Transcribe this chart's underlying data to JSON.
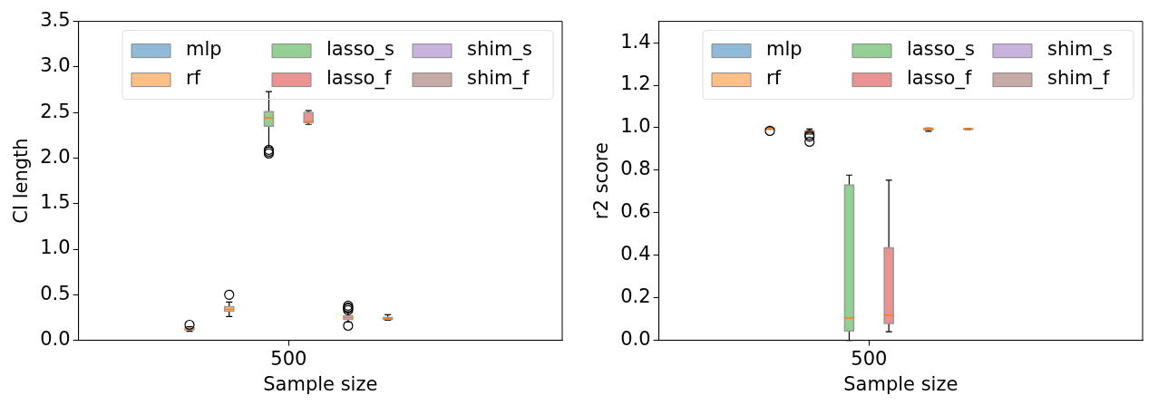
{
  "chart_data": [
    {
      "type": "box",
      "xlabel": "Sample size",
      "ylabel": "CI length",
      "categories": [
        "500"
      ],
      "ylim": [
        0,
        3.5
      ],
      "yticks": [
        {
          "value": 0,
          "label": "0.0"
        },
        {
          "value": 0.5,
          "label": "0.5"
        },
        {
          "value": 1,
          "label": "1.0"
        },
        {
          "value": 1.5,
          "label": "1.5"
        },
        {
          "value": 2,
          "label": "2.0"
        },
        {
          "value": 2.5,
          "label": "2.5"
        },
        {
          "value": 3,
          "label": "3.0"
        },
        {
          "value": 3.5,
          "label": "3.5"
        }
      ],
      "grid": false,
      "legend": "top right",
      "series": [
        {
          "name": "mlp",
          "color": "#8fbbd9",
          "boxes": [
            {
              "low": 0.1,
              "q1": 0.115,
              "median": 0.125,
              "q3": 0.135,
              "high": 0.15,
              "outliers": [
                0.17
              ]
            }
          ]
        },
        {
          "name": "rf",
          "color": "#ffbf86",
          "boxes": [
            {
              "low": 0.26,
              "q1": 0.32,
              "median": 0.34,
              "q3": 0.37,
              "high": 0.42,
              "outliers": [
                0.5
              ]
            }
          ]
        },
        {
          "name": "lasso_s",
          "color": "#94cf94",
          "boxes": [
            {
              "low": 2.12,
              "q1": 2.35,
              "median": 2.44,
              "q3": 2.51,
              "high": 2.73,
              "outliers": [
                2.05,
                2.07,
                2.09
              ]
            }
          ]
        },
        {
          "name": "lasso_f",
          "color": "#ea9393",
          "boxes": [
            {
              "low": 2.37,
              "q1": 2.39,
              "median": 2.4,
              "q3": 2.5,
              "high": 2.52
            }
          ]
        },
        {
          "name": "shim_s",
          "color": "#c9b3de",
          "boxes": [
            {
              "low": 0.2,
              "q1": 0.23,
              "median": 0.25,
              "q3": 0.27,
              "high": 0.31,
              "outliers": [
                0.16,
                0.33,
                0.35,
                0.36,
                0.38
              ]
            }
          ]
        },
        {
          "name": "shim_f",
          "color": "#c5aaa5",
          "boxes": [
            {
              "low": 0.22,
              "q1": 0.23,
              "median": 0.24,
              "q3": 0.25,
              "high": 0.28
            }
          ]
        }
      ]
    },
    {
      "type": "box",
      "xlabel": "Sample size",
      "ylabel": "r2 score",
      "categories": [
        "500"
      ],
      "ylim": [
        0,
        1.5
      ],
      "yticks": [
        {
          "value": 0,
          "label": "0.0"
        },
        {
          "value": 0.2,
          "label": "0.2"
        },
        {
          "value": 0.4,
          "label": "0.4"
        },
        {
          "value": 0.6,
          "label": "0.6"
        },
        {
          "value": 0.8,
          "label": "0.8"
        },
        {
          "value": 1,
          "label": "1.0"
        },
        {
          "value": 1.2,
          "label": "1.2"
        },
        {
          "value": 1.4,
          "label": "1.4"
        }
      ],
      "grid": false,
      "legend": "top right",
      "series": [
        {
          "name": "mlp",
          "color": "#8fbbd9",
          "boxes": [
            {
              "low": 0.993,
              "q1": 0.993,
              "median": 0.995,
              "q3": 0.998,
              "high": 1.0,
              "outliers": [
                0.985
              ]
            }
          ]
        },
        {
          "name": "rf",
          "color": "#ffbf86",
          "boxes": [
            {
              "low": 0.97,
              "q1": 0.975,
              "median": 0.982,
              "q3": 0.985,
              "high": 0.994,
              "outliers": [
                0.934,
                0.958,
                0.966
              ]
            }
          ]
        },
        {
          "name": "lasso_s",
          "color": "#94cf94",
          "boxes": [
            {
              "low": 0.0,
              "q1": 0.044,
              "median": 0.105,
              "q3": 0.73,
              "high": 0.777
            }
          ]
        },
        {
          "name": "lasso_f",
          "color": "#ea9393",
          "boxes": [
            {
              "low": 0.04,
              "q1": 0.079,
              "median": 0.118,
              "q3": 0.435,
              "high": 0.753
            }
          ]
        },
        {
          "name": "shim_s",
          "color": "#c9b3de",
          "boxes": [
            {
              "low": 0.983,
              "q1": 0.99,
              "median": 0.994,
              "q3": 0.996,
              "high": 0.998
            }
          ]
        },
        {
          "name": "shim_f",
          "color": "#c5aaa5",
          "boxes": [
            {
              "low": 0.992,
              "q1": 0.993,
              "median": 0.994,
              "q3": 0.995,
              "high": 0.996
            }
          ]
        }
      ]
    }
  ]
}
